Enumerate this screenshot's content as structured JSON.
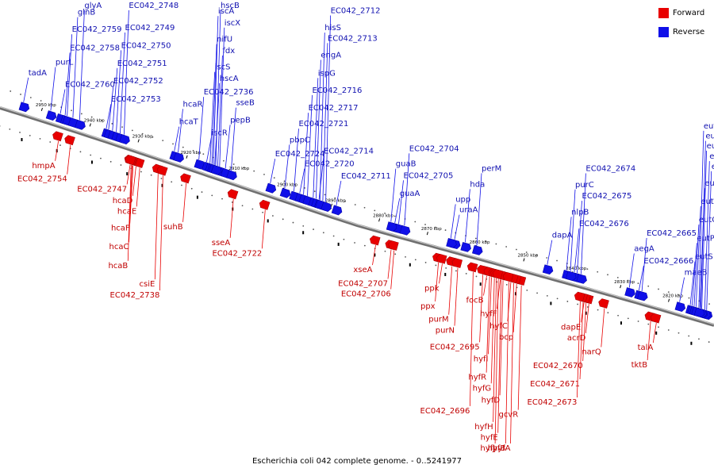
{
  "caption": "Escherichia coli 042 complete genome. - 0..5241977",
  "legend": [
    {
      "label": "Forward",
      "color": "#e80000"
    },
    {
      "label": "Reverse",
      "color": "#1010e8"
    }
  ],
  "colors": {
    "forward": "#e80000",
    "reverse": "#1010e8",
    "backbone": "#707070",
    "tick": "#000000"
  },
  "ticks": [
    "2950 kbp",
    "2940 kbp",
    "2930 kbp",
    "2920 kbp",
    "2910 kbp",
    "2900 kbp",
    "2890 kbp",
    "2880 kbp",
    "2870 kbp",
    "2860 kbp",
    "2850 kbp",
    "2840 kbp",
    "2830 kbp",
    "2820 kbp"
  ],
  "genes": [
    {
      "name": "tadA",
      "strand": "reverse",
      "kbp": 2953.6,
      "label_row": 0
    },
    {
      "name": "purL",
      "strand": "reverse",
      "kbp": 2948.0,
      "label_row": 0
    },
    {
      "name": "EC042_2760",
      "strand": "reverse",
      "kbp": 2946.0,
      "label_row": 0
    },
    {
      "name": "EC042_2758",
      "strand": "reverse",
      "kbp": 2945.0,
      "label_row": 0
    },
    {
      "name": "EC042_2759",
      "strand": "reverse",
      "kbp": 2944.6,
      "label_row": 0
    },
    {
      "name": "glnB",
      "strand": "reverse",
      "kbp": 2943.4,
      "label_row": 0
    },
    {
      "name": "glyA",
      "strand": "reverse",
      "kbp": 2942.0,
      "label_row": 0
    },
    {
      "name": "EC042_2753",
      "strand": "reverse",
      "kbp": 2936.5,
      "label_row": 0
    },
    {
      "name": "EC042_2752",
      "strand": "reverse",
      "kbp": 2936.0,
      "label_row": 0
    },
    {
      "name": "EC042_2751",
      "strand": "reverse",
      "kbp": 2935.2,
      "label_row": 0
    },
    {
      "name": "EC042_2750",
      "strand": "reverse",
      "kbp": 2934.4,
      "label_row": 0
    },
    {
      "name": "EC042_2749",
      "strand": "reverse",
      "kbp": 2933.6,
      "label_row": 0
    },
    {
      "name": "EC042_2748",
      "strand": "reverse",
      "kbp": 2932.8,
      "label_row": 0
    },
    {
      "name": "hcaT",
      "strand": "reverse",
      "kbp": 2922.4,
      "label_row": 0
    },
    {
      "name": "hcaR",
      "strand": "reverse",
      "kbp": 2921.6,
      "label_row": 0
    },
    {
      "name": "EC042_2736",
      "strand": "reverse",
      "kbp": 2917.3,
      "label_row": 0
    },
    {
      "name": "iscR",
      "strand": "reverse",
      "kbp": 2915.7,
      "label_row": 0
    },
    {
      "name": "hscA",
      "strand": "reverse",
      "kbp": 2914.0,
      "label_row": 0
    },
    {
      "name": "iscS",
      "strand": "reverse",
      "kbp": 2915.0,
      "label_row": 0
    },
    {
      "name": "fdx",
      "strand": "reverse",
      "kbp": 2913.4,
      "label_row": 0
    },
    {
      "name": "nifU",
      "strand": "reverse",
      "kbp": 2914.6,
      "label_row": 0
    },
    {
      "name": "iscX",
      "strand": "reverse",
      "kbp": 2913.0,
      "label_row": 0
    },
    {
      "name": "iscA",
      "strand": "reverse",
      "kbp": 2914.3,
      "label_row": 0
    },
    {
      "name": "pepB",
      "strand": "reverse",
      "kbp": 2911.8,
      "label_row": 0
    },
    {
      "name": "hscB",
      "strand": "reverse",
      "kbp": 2913.8,
      "label_row": 0
    },
    {
      "name": "sseB",
      "strand": "reverse",
      "kbp": 2910.6,
      "label_row": 0
    },
    {
      "name": "EC042_2724",
      "strand": "reverse",
      "kbp": 2902.5,
      "label_row": 0
    },
    {
      "name": "pbpC",
      "strand": "reverse",
      "kbp": 2899.5,
      "label_row": 0
    },
    {
      "name": "EC042_2721",
      "strand": "reverse",
      "kbp": 2897.6,
      "label_row": 0
    },
    {
      "name": "EC042_2720",
      "strand": "reverse",
      "kbp": 2896.4,
      "label_row": 0
    },
    {
      "name": "EC042_2717",
      "strand": "reverse",
      "kbp": 2895.6,
      "label_row": 0
    },
    {
      "name": "EC042_2716",
      "strand": "reverse",
      "kbp": 2894.8,
      "label_row": 0
    },
    {
      "name": "ispG",
      "strand": "reverse",
      "kbp": 2893.6,
      "label_row": 0
    },
    {
      "name": "engA",
      "strand": "reverse",
      "kbp": 2893.0,
      "label_row": 0
    },
    {
      "name": "EC042_2714",
      "strand": "reverse",
      "kbp": 2892.4,
      "label_row": 0
    },
    {
      "name": "EC042_2713",
      "strand": "reverse",
      "kbp": 2891.6,
      "label_row": 0
    },
    {
      "name": "hisS",
      "strand": "reverse",
      "kbp": 2892.2,
      "label_row": 0
    },
    {
      "name": "EC042_2712",
      "strand": "reverse",
      "kbp": 2891.0,
      "label_row": 0
    },
    {
      "name": "EC042_2711",
      "strand": "reverse",
      "kbp": 2888.8,
      "label_row": 0
    },
    {
      "name": "guaA",
      "strand": "reverse",
      "kbp": 2876.6,
      "label_row": 0
    },
    {
      "name": "EC042_2705",
      "strand": "reverse",
      "kbp": 2875.8,
      "label_row": 0
    },
    {
      "name": "guaB",
      "strand": "reverse",
      "kbp": 2877.4,
      "label_row": 0
    },
    {
      "name": "EC042_2704",
      "strand": "reverse",
      "kbp": 2874.6,
      "label_row": 0
    },
    {
      "name": "uraA",
      "strand": "reverse",
      "kbp": 2864.2,
      "label_row": 0
    },
    {
      "name": "upp",
      "strand": "reverse",
      "kbp": 2865.0,
      "label_row": 0
    },
    {
      "name": "hda",
      "strand": "reverse",
      "kbp": 2862.0,
      "label_row": 0
    },
    {
      "name": "perM",
      "strand": "reverse",
      "kbp": 2859.6,
      "label_row": 0
    },
    {
      "name": "dapA",
      "strand": "reverse",
      "kbp": 2845.0,
      "label_row": 0
    },
    {
      "name": "EC042_2676",
      "strand": "reverse",
      "kbp": 2839.4,
      "label_row": 0
    },
    {
      "name": "nlpB",
      "strand": "reverse",
      "kbp": 2841.0,
      "label_row": 0
    },
    {
      "name": "EC042_2675",
      "strand": "reverse",
      "kbp": 2838.8,
      "label_row": 0
    },
    {
      "name": "purC",
      "strand": "reverse",
      "kbp": 2840.2,
      "label_row": 0
    },
    {
      "name": "EC042_2674",
      "strand": "reverse",
      "kbp": 2838.0,
      "label_row": 0
    },
    {
      "name": "EC042_2666",
      "strand": "reverse",
      "kbp": 2826.0,
      "label_row": 0
    },
    {
      "name": "aegA",
      "strand": "reverse",
      "kbp": 2828.0,
      "label_row": 0
    },
    {
      "name": "EC042_2665",
      "strand": "reverse",
      "kbp": 2825.4,
      "label_row": 0
    },
    {
      "name": "maeB",
      "strand": "reverse",
      "kbp": 2817.6,
      "label_row": 0
    },
    {
      "name": "eutS",
      "strand": "reverse",
      "kbp": 2815.4,
      "label_row": 0
    },
    {
      "name": "eutP",
      "strand": "reverse",
      "kbp": 2815.0,
      "label_row": 0
    },
    {
      "name": "eutQ",
      "strand": "reverse",
      "kbp": 2814.6,
      "label_row": 0
    },
    {
      "name": "eutT",
      "strand": "reverse",
      "kbp": 2814.2,
      "label_row": 0
    },
    {
      "name": "eutD",
      "strand": "reverse",
      "kbp": 2813.4,
      "label_row": 0
    },
    {
      "name": "eutG",
      "strand": "reverse",
      "kbp": 2812.0,
      "label_row": 0
    },
    {
      "name": "eutJ",
      "strand": "reverse",
      "kbp": 2812.4,
      "label_row": 0
    },
    {
      "name": "eutE",
      "strand": "reverse",
      "kbp": 2813.0,
      "label_row": 0
    },
    {
      "name": "eutN",
      "strand": "reverse",
      "kbp": 2813.2,
      "label_row": 0
    },
    {
      "name": "eutM",
      "strand": "reverse",
      "kbp": 2813.6,
      "label_row": 0
    },
    {
      "name": "hmpA",
      "strand": "forward",
      "kbp": 2945.3,
      "label_row": 0
    },
    {
      "name": "EC042_2754",
      "strand": "forward",
      "kbp": 2942.8,
      "label_row": 0
    },
    {
      "name": "EC042_2747",
      "strand": "forward",
      "kbp": 2930.4,
      "label_row": 0
    },
    {
      "name": "hcaD",
      "strand": "forward",
      "kbp": 2929.2,
      "label_row": 0
    },
    {
      "name": "hcaE",
      "strand": "forward",
      "kbp": 2928.4,
      "label_row": 0
    },
    {
      "name": "hcaF",
      "strand": "forward",
      "kbp": 2929.8,
      "label_row": 0
    },
    {
      "name": "hcaC",
      "strand": "forward",
      "kbp": 2930.0,
      "label_row": 0
    },
    {
      "name": "hcaB",
      "strand": "forward",
      "kbp": 2930.2,
      "label_row": 0
    },
    {
      "name": "csiE",
      "strand": "forward",
      "kbp": 2924.6,
      "label_row": 0
    },
    {
      "name": "EC042_2738",
      "strand": "forward",
      "kbp": 2923.6,
      "label_row": 0
    },
    {
      "name": "suhB",
      "strand": "forward",
      "kbp": 2918.8,
      "label_row": 0
    },
    {
      "name": "sseA",
      "strand": "forward",
      "kbp": 2909.0,
      "label_row": 0
    },
    {
      "name": "EC042_2722",
      "strand": "forward",
      "kbp": 2902.4,
      "label_row": 0
    },
    {
      "name": "xseA",
      "strand": "forward",
      "kbp": 2879.6,
      "label_row": 0
    },
    {
      "name": "EC042_2707",
      "strand": "forward",
      "kbp": 2876.4,
      "label_row": 0
    },
    {
      "name": "EC042_2706",
      "strand": "forward",
      "kbp": 2875.8,
      "label_row": 0
    },
    {
      "name": "ppx",
      "strand": "forward",
      "kbp": 2866.6,
      "label_row": 0
    },
    {
      "name": "ppk",
      "strand": "forward",
      "kbp": 2865.8,
      "label_row": 0
    },
    {
      "name": "purM",
      "strand": "forward",
      "kbp": 2863.8,
      "label_row": 0
    },
    {
      "name": "purN",
      "strand": "forward",
      "kbp": 2862.6,
      "label_row": 0
    },
    {
      "name": "focB",
      "strand": "forward",
      "kbp": 2856.6,
      "label_row": 0
    },
    {
      "name": "EC042_2695",
      "strand": "forward",
      "kbp": 2857.4,
      "label_row": 0
    },
    {
      "name": "hyfI",
      "strand": "forward",
      "kbp": 2855.6,
      "label_row": 0
    },
    {
      "name": "hyfR",
      "strand": "forward",
      "kbp": 2856.0,
      "label_row": 0
    },
    {
      "name": "hyfF",
      "strand": "forward",
      "kbp": 2853.8,
      "label_row": 0
    },
    {
      "name": "hyfC",
      "strand": "forward",
      "kbp": 2851.6,
      "label_row": 0
    },
    {
      "name": "hyfG",
      "strand": "forward",
      "kbp": 2855.0,
      "label_row": 0
    },
    {
      "name": "hyfD",
      "strand": "forward",
      "kbp": 2853.2,
      "label_row": 0
    },
    {
      "name": "EC042_2696",
      "strand": "forward",
      "kbp": 2859.4,
      "label_row": 0
    },
    {
      "name": "hyfH",
      "strand": "forward",
      "kbp": 2854.6,
      "label_row": 0
    },
    {
      "name": "hyfE",
      "strand": "forward",
      "kbp": 2853.6,
      "label_row": 0
    },
    {
      "name": "gcvR",
      "strand": "forward",
      "kbp": 2849.4,
      "label_row": 0
    },
    {
      "name": "bcp",
      "strand": "forward",
      "kbp": 2850.4,
      "label_row": 0
    },
    {
      "name": "hyfJ",
      "strand": "forward",
      "kbp": 2854.2,
      "label_row": 0
    },
    {
      "name": "hyfA",
      "strand": "forward",
      "kbp": 2851.0,
      "label_row": 0
    },
    {
      "name": "hyfB",
      "strand": "forward",
      "kbp": 2852.0,
      "label_row": 0
    },
    {
      "name": "dapE",
      "strand": "forward",
      "kbp": 2836.4,
      "label_row": 0
    },
    {
      "name": "acrD",
      "strand": "forward",
      "kbp": 2835.4,
      "label_row": 0
    },
    {
      "name": "narQ",
      "strand": "forward",
      "kbp": 2832.2,
      "label_row": 0
    },
    {
      "name": "EC042_2670",
      "strand": "forward",
      "kbp": 2836.0,
      "label_row": 0
    },
    {
      "name": "EC042_2671",
      "strand": "forward",
      "kbp": 2836.6,
      "label_row": 0
    },
    {
      "name": "EC042_2673",
      "strand": "forward",
      "kbp": 2837.2,
      "label_row": 0
    },
    {
      "name": "tktB",
      "strand": "forward",
      "kbp": 2822.6,
      "label_row": 0
    },
    {
      "name": "talA",
      "strand": "forward",
      "kbp": 2821.4,
      "label_row": 0
    }
  ]
}
